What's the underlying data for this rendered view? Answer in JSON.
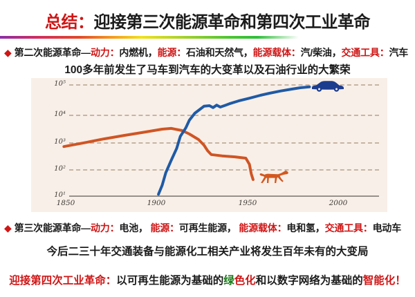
{
  "title": {
    "prefix": "总结：",
    "text": "迎接第三次能源革命和第四次工业革命"
  },
  "bullet2": {
    "marker": "◆",
    "segments": [
      {
        "text": "第二次能源革命—"
      },
      {
        "text": "动力："
      },
      {
        "text": "内燃机，"
      },
      {
        "text": "能源："
      },
      {
        "text": "石油和天然气，"
      },
      {
        "text": "能源载体："
      },
      {
        "text": "汽/柴油，"
      },
      {
        "text": "交通工具："
      },
      {
        "text": "汽车"
      }
    ]
  },
  "line_100years": "100多年前发生了马车到汽车的大变革以及石油行业的大繁荣",
  "bullet3": {
    "marker": "◆",
    "segments": [
      {
        "text": "第三次能源革命—"
      },
      {
        "text": "动力："
      },
      {
        "text": "电池，  "
      },
      {
        "text": "能源："
      },
      {
        "text": "可再生能源，  "
      },
      {
        "text": "能源载体："
      },
      {
        "text": "电和氢，"
      },
      {
        "text": "交通工具："
      },
      {
        "text": "电动车"
      }
    ]
  },
  "line_future": "今后二三十年交通装备与能源化工相关产业将发生百年未有的大变局",
  "bottom_line": {
    "segments": [
      {
        "text": "迎接第四次工业革命："
      },
      {
        "text": "以可再生能源为基础的"
      },
      {
        "text": "绿"
      },
      {
        "text": "色化"
      },
      {
        "text": "和以数字网络为基础的"
      },
      {
        "text": "智能化！"
      }
    ]
  },
  "colors": {
    "accent_red": "#cf1616",
    "accent_green": "#187a18",
    "chart_background": "#f8efe8",
    "cars_line": "#1f5aa5",
    "horses_line": "#cf5524",
    "car_icon": "#1c3c8e",
    "horse_icon": "#d4581e",
    "gridline": "#c6b4a3"
  },
  "icons": {
    "end_marker_cars": "car-icon",
    "end_marker_horses": "horse-icon"
  },
  "chart_data": {
    "type": "line",
    "y_scale": "log",
    "grid": "dashed horizontal",
    "x_ticks": [
      "1850",
      "1900",
      "1950",
      "2000"
    ],
    "y_ticks": [
      "10⁵",
      "10⁴",
      "10³",
      "10²",
      "10¹"
    ],
    "x_range": [
      1845,
      2005
    ],
    "y_range_log10": [
      1,
      5
    ],
    "legend": "none (pictogram end markers: car for cars series, horse for horses series)",
    "series": [
      {
        "id": "cars",
        "name": "汽车 (cars)",
        "color": "#1f5aa5",
        "points": [
          [
            1901,
            11
          ],
          [
            1903,
            23
          ],
          [
            1905,
            65
          ],
          [
            1908,
            180
          ],
          [
            1911,
            480
          ],
          [
            1913,
            1300
          ],
          [
            1916,
            2600
          ],
          [
            1918,
            4900
          ],
          [
            1921,
            8700
          ],
          [
            1924,
            12300
          ],
          [
            1926,
            15500
          ],
          [
            1929,
            16200
          ],
          [
            1931,
            13800
          ],
          [
            1933,
            17000
          ],
          [
            1935,
            14500
          ],
          [
            1938,
            17000
          ],
          [
            1940,
            19000
          ],
          [
            1945,
            24000
          ],
          [
            1951,
            30000
          ],
          [
            1957,
            38000
          ],
          [
            1962,
            45000
          ],
          [
            1968,
            54000
          ],
          [
            1974,
            63000
          ],
          [
            1979,
            71000
          ],
          [
            1984,
            76000
          ]
        ]
      },
      {
        "id": "horses",
        "name": "马车 (horses)",
        "color": "#cf5524",
        "points": [
          [
            1849,
            560
          ],
          [
            1860,
            760
          ],
          [
            1871,
            1050
          ],
          [
            1882,
            1400
          ],
          [
            1894,
            1870
          ],
          [
            1903,
            2350
          ],
          [
            1908,
            2500
          ],
          [
            1914,
            2100
          ],
          [
            1918,
            1580
          ],
          [
            1923,
            1000
          ],
          [
            1926,
            630
          ],
          [
            1928,
            400
          ],
          [
            1930,
            290
          ],
          [
            1936,
            260
          ],
          [
            1943,
            240
          ],
          [
            1949,
            215
          ],
          [
            1951,
            130
          ],
          [
            1952,
            59
          ],
          [
            1953,
            37
          ]
        ]
      }
    ]
  }
}
